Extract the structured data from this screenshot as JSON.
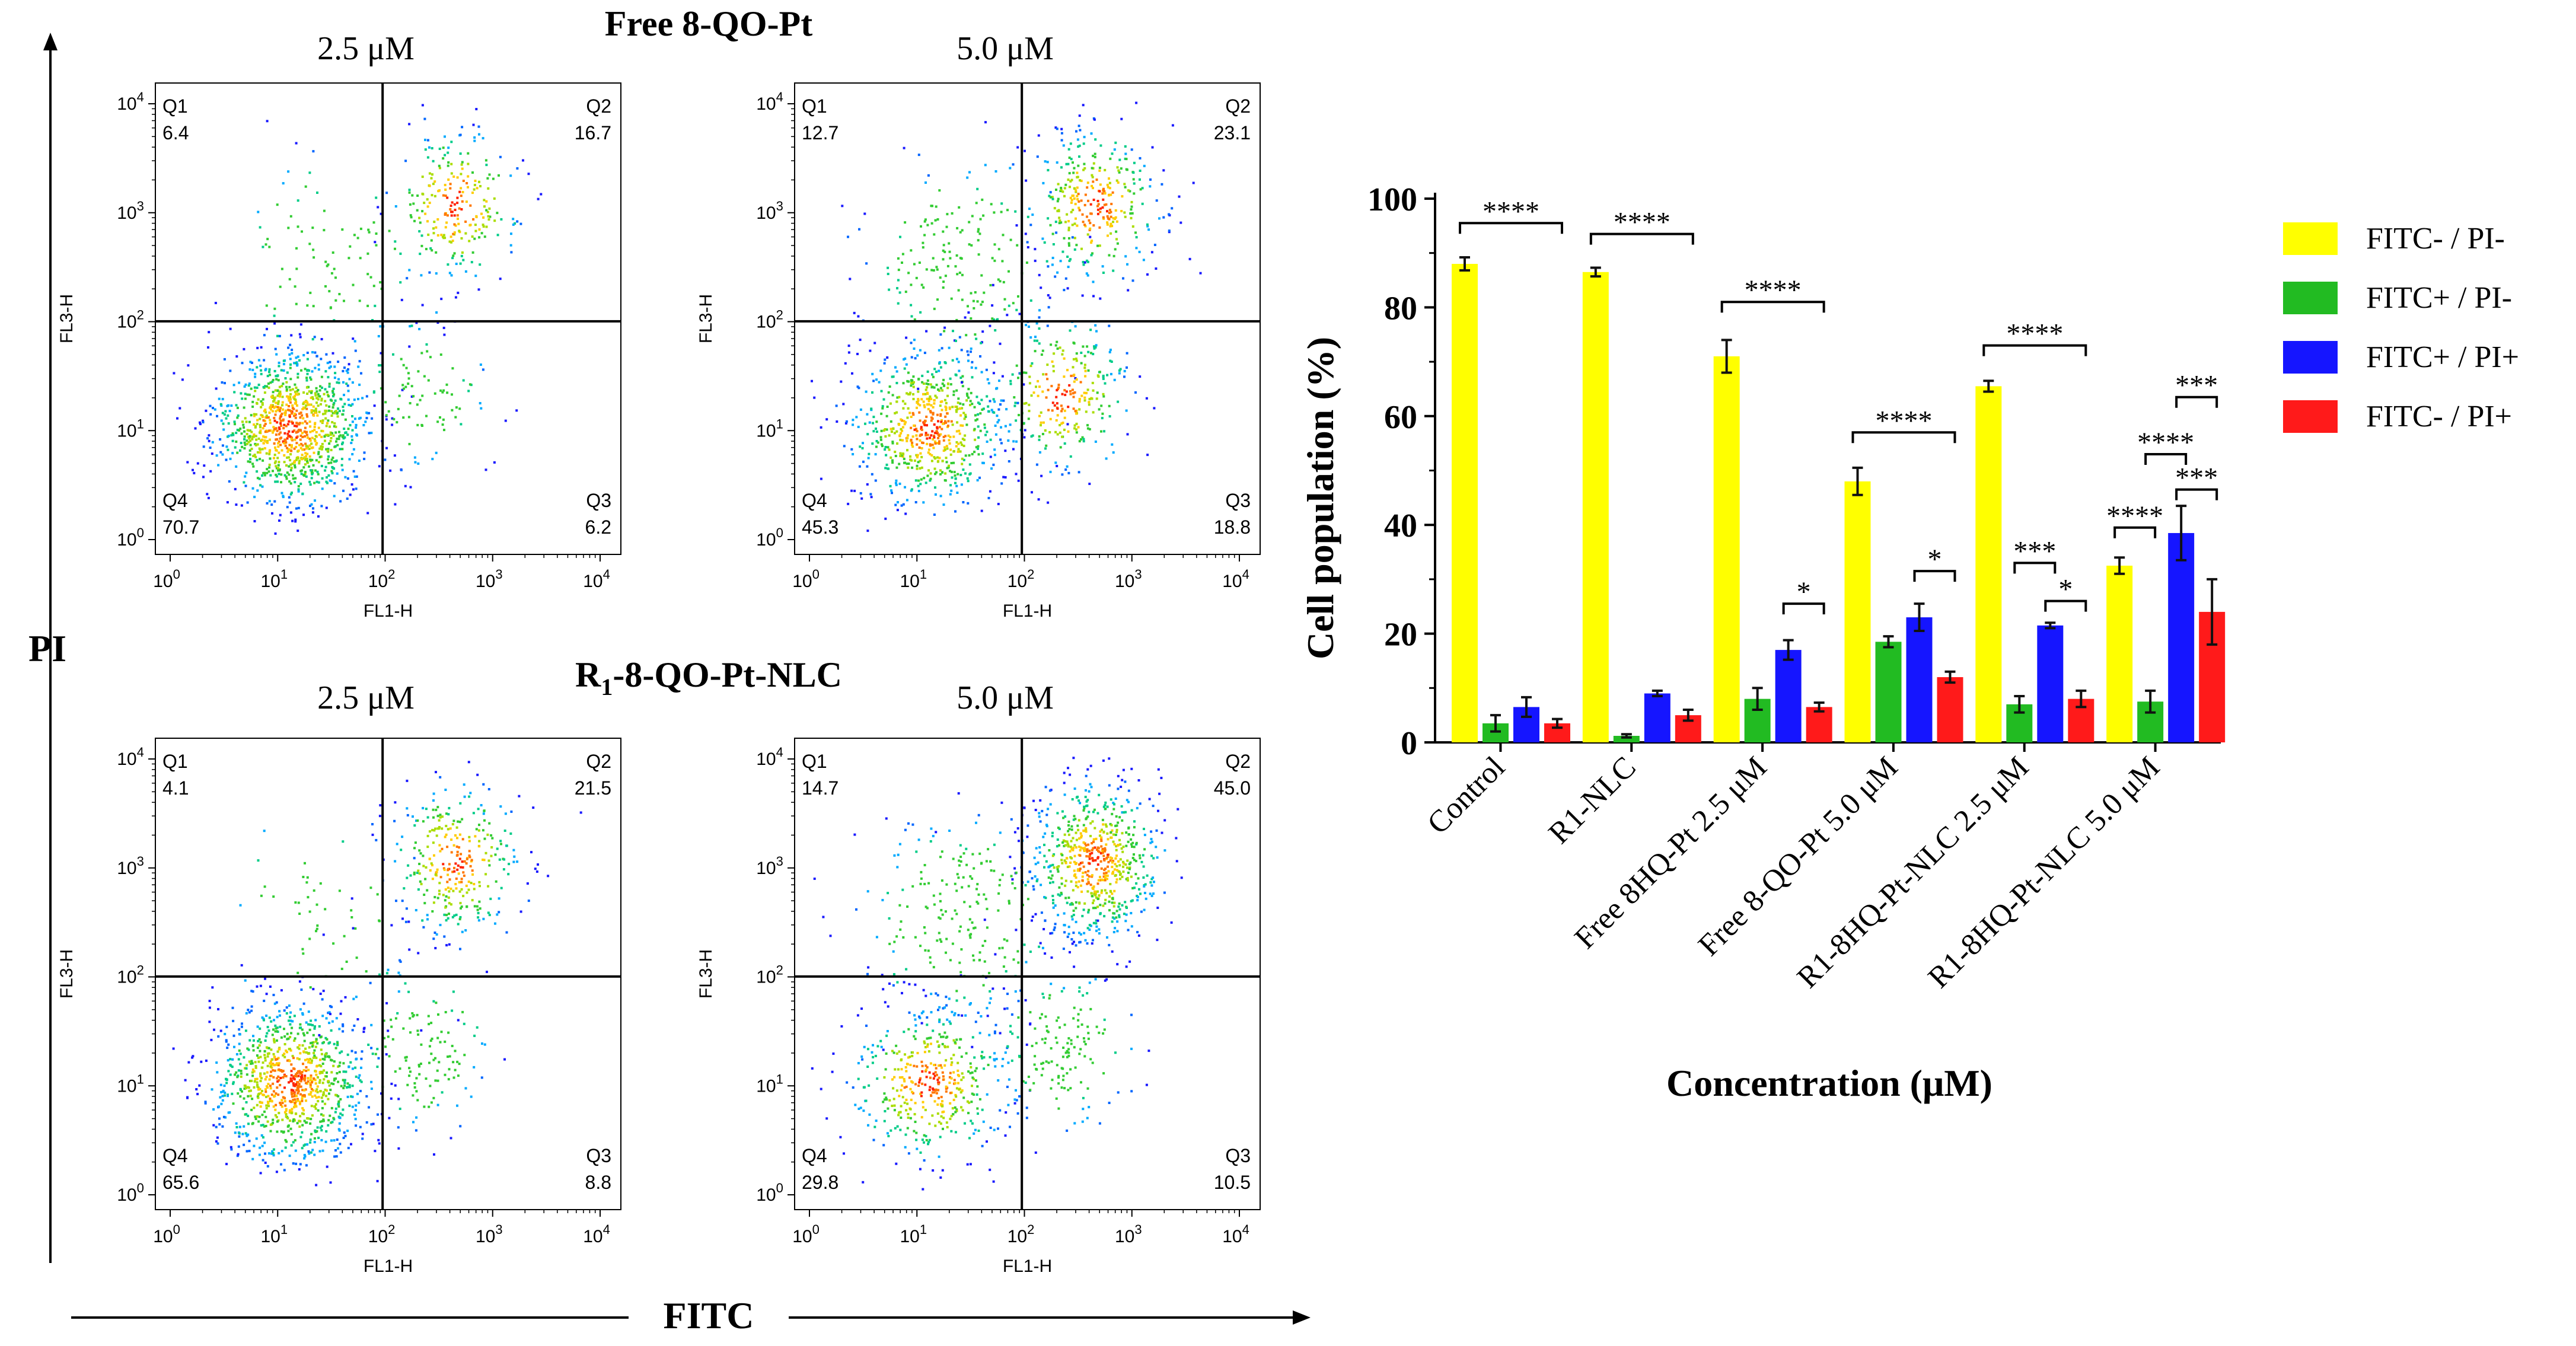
{
  "flow": {
    "pi_label": "PI",
    "fitc_label": "FITC",
    "rows": [
      {
        "title_main": "Free 8-QO-Pt",
        "title_sub": "",
        "title_rest": "",
        "panels": [
          {
            "conc": "2.5 μM",
            "quadrants": {
              "Q1": "6.4",
              "Q2": "16.7",
              "Q3": "6.2",
              "Q4": "70.7"
            }
          },
          {
            "conc": "5.0 μM",
            "quadrants": {
              "Q1": "12.7",
              "Q2": "23.1",
              "Q3": "18.8",
              "Q4": "45.3"
            }
          }
        ]
      },
      {
        "title_main": "R",
        "title_sub": "1",
        "title_rest": "-8-QO-Pt-NLC",
        "panels": [
          {
            "conc": "2.5 μM",
            "quadrants": {
              "Q1": "4.1",
              "Q2": "21.5",
              "Q3": "8.8",
              "Q4": "65.6"
            }
          },
          {
            "conc": "5.0 μM",
            "quadrants": {
              "Q1": "14.7",
              "Q2": "45.0",
              "Q3": "10.5",
              "Q4": "29.8"
            }
          }
        ]
      }
    ],
    "axis_x": "FL1-H",
    "axis_y": "FL3-H",
    "quadrant_names": [
      "Q1",
      "Q2",
      "Q3",
      "Q4"
    ],
    "decade_exponents": [
      "0",
      "1",
      "2",
      "3",
      "4"
    ],
    "decade_base": "10"
  },
  "chart_data": {
    "type": "bar",
    "ylabel": "Cell population (%)",
    "xlabel": "Concentration (μM)",
    "ylim": [
      0,
      100
    ],
    "yticks": [
      0,
      20,
      40,
      60,
      80,
      100
    ],
    "categories": [
      {
        "label": "Control"
      },
      {
        "label": "R1-NLC"
      },
      {
        "label": "Free 8HQ-Pt 2.5 μM"
      },
      {
        "label": "Free 8-QO-Pt 5.0 μM"
      },
      {
        "label": "R1-8HQ-Pt-NLC 2.5 μM"
      },
      {
        "label": "R1-8HQ-Pt-NLC 5.0 μM"
      }
    ],
    "series": [
      {
        "name": "FITC- / PI-",
        "color": "#ffff00",
        "values": [
          88,
          86.5,
          71,
          48,
          65.5,
          32.5
        ],
        "errors": [
          1.2,
          0.8,
          3,
          2.5,
          1,
          1.5
        ]
      },
      {
        "name": "FITC+ / PI-",
        "color": "#22bb22",
        "values": [
          3.5,
          1.2,
          8,
          18.5,
          7,
          7.5
        ],
        "errors": [
          1.5,
          0.3,
          2,
          1,
          1.5,
          2
        ]
      },
      {
        "name": "FITC+ / PI+",
        "color": "#1515ff",
        "values": [
          6.5,
          9,
          17,
          23,
          21.5,
          38.5
        ],
        "errors": [
          1.8,
          0.5,
          1.8,
          2.5,
          0.5,
          5
        ]
      },
      {
        "name": "FITC- / PI+",
        "color": "#ff1a1a",
        "values": [
          3.5,
          5,
          6.5,
          12,
          8,
          24
        ],
        "errors": [
          0.8,
          1,
          0.8,
          1,
          1.5,
          6
        ]
      }
    ],
    "significance": [
      {
        "group": 0,
        "from": 0,
        "to": 3,
        "y": 95.5,
        "label": "****"
      },
      {
        "group": 1,
        "from": 0,
        "to": 3,
        "y": 93.5,
        "label": "****"
      },
      {
        "group": 2,
        "from": 0,
        "to": 3,
        "y": 81,
        "label": "****"
      },
      {
        "group": 2,
        "from": 2,
        "to": 3,
        "y": 25.5,
        "label": "*"
      },
      {
        "group": 3,
        "from": 0,
        "to": 3,
        "y": 57,
        "label": "****"
      },
      {
        "group": 3,
        "from": 2,
        "to": 3,
        "y": 31.5,
        "label": "*"
      },
      {
        "group": 4,
        "from": 0,
        "to": 3,
        "y": 73,
        "label": "****"
      },
      {
        "group": 4,
        "from": 1,
        "to": 2,
        "y": 33,
        "label": "***"
      },
      {
        "group": 4,
        "from": 2,
        "to": 3,
        "y": 26,
        "label": "*"
      },
      {
        "group": 5,
        "from": 0,
        "to": 1,
        "y": 39.5,
        "label": "****"
      },
      {
        "group": 5,
        "from": 1,
        "to": 2,
        "y": 53,
        "label": "****"
      },
      {
        "group": 5,
        "from": 2,
        "to": 3,
        "y": 46.5,
        "label": "***"
      },
      {
        "group": 5,
        "from": 2,
        "to": 3,
        "y": 63.5,
        "label": "***"
      }
    ]
  }
}
